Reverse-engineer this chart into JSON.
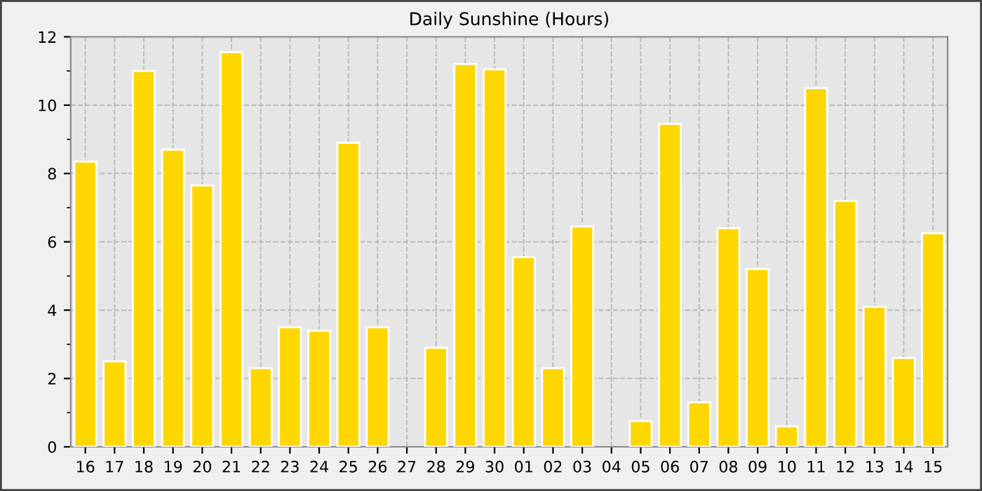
{
  "chart_data": {
    "type": "bar",
    "title": "Daily Sunshine (Hours)",
    "categories": [
      "16",
      "17",
      "18",
      "19",
      "20",
      "21",
      "22",
      "23",
      "24",
      "25",
      "26",
      "27",
      "28",
      "29",
      "30",
      "01",
      "02",
      "03",
      "04",
      "05",
      "06",
      "07",
      "08",
      "09",
      "10",
      "11",
      "12",
      "13",
      "14",
      "15"
    ],
    "values": [
      8.35,
      2.5,
      11.0,
      8.7,
      7.65,
      11.55,
      2.3,
      3.5,
      3.4,
      8.9,
      3.5,
      0,
      2.9,
      11.2,
      11.05,
      5.55,
      2.3,
      6.45,
      0,
      0.75,
      9.45,
      1.3,
      6.4,
      5.2,
      0.6,
      10.5,
      7.2,
      4.1,
      2.6,
      6.25
    ],
    "color": "#ffd700",
    "ylim": [
      0,
      12
    ],
    "yticks": [
      0,
      2,
      4,
      6,
      8,
      10,
      12
    ],
    "grid": true,
    "line_style": "dashed"
  }
}
